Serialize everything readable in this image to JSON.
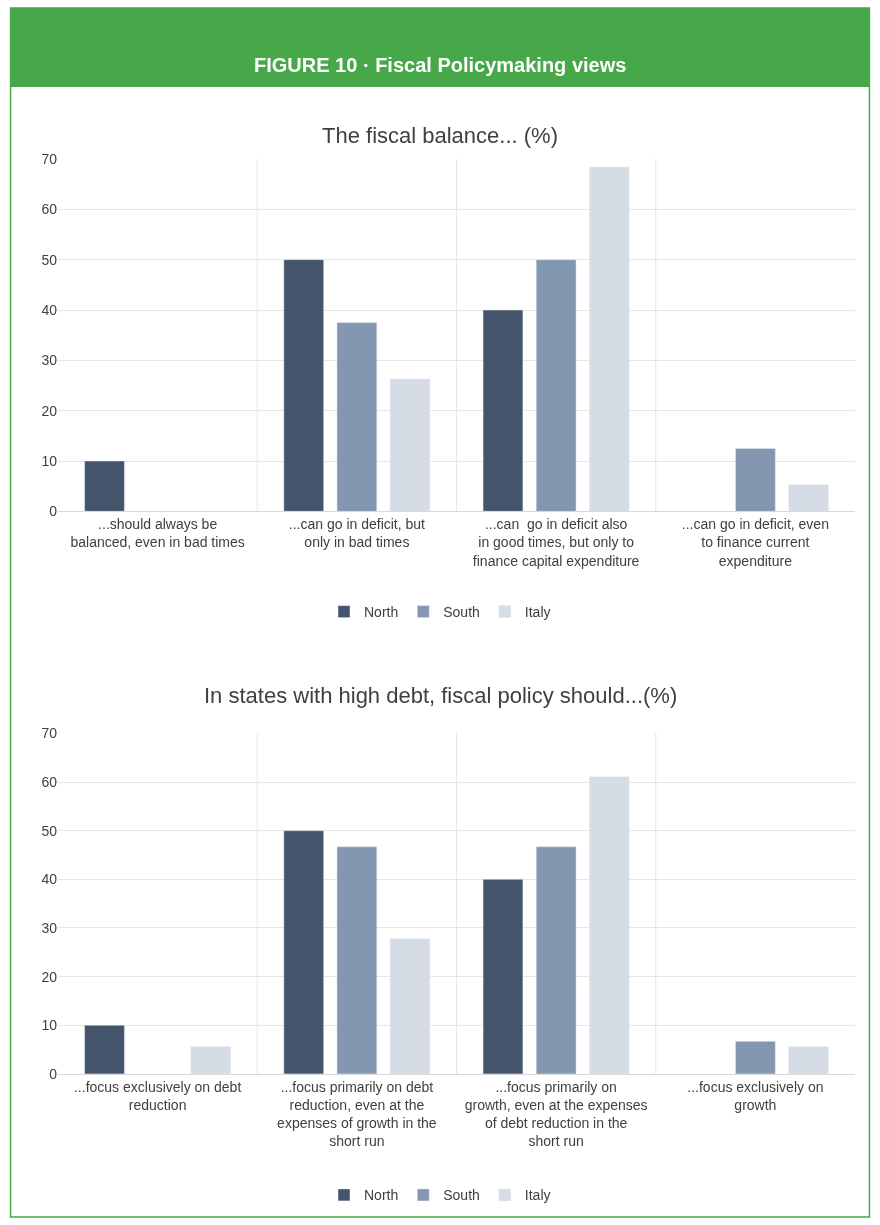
{
  "chart_data": [
    {
      "type": "bar",
      "title": "FIGURE 10 · Fiscal Policymaking views",
      "subtitle": "The fiscal balance... (%)",
      "categories": [
        "...should always be balanced, even in bad times",
        "...can go in deficit, but only in bad times",
        "...can  go in deficit also in good times, but only to finance capital expenditure",
        "...can go in deficit, even to finance current expenditure"
      ],
      "series": [
        {
          "name": "North",
          "color": "#44546a",
          "values": [
            10,
            50,
            40,
            null
          ]
        },
        {
          "name": "South",
          "color": "#8497b0",
          "values": [
            null,
            37.5,
            50,
            12.5
          ]
        },
        {
          "name": "Italy",
          "color": "#d6dce5",
          "values": [
            null,
            26.3,
            68.4,
            5.3
          ]
        }
      ],
      "ylim": [
        0,
        70
      ],
      "yticks": [
        0,
        10,
        20,
        30,
        40,
        50,
        60,
        70
      ],
      "grid": true,
      "legend": "bottom"
    },
    {
      "type": "bar",
      "title": "In states with high debt, fiscal policy should...(%)",
      "categories": [
        "...focus exclusively on debt reduction",
        "...focus primarily on debt reduction, even at the expenses of growth in the short run",
        "...focus primarily on growth, even at the expenses of debt reduction in the short run",
        "...focus exclusively on growth"
      ],
      "series": [
        {
          "name": "North",
          "color": "#44546a",
          "values": [
            10,
            50,
            40,
            null
          ]
        },
        {
          "name": "South",
          "color": "#8497b0",
          "values": [
            null,
            46.7,
            46.7,
            6.7
          ]
        },
        {
          "name": "Italy",
          "color": "#d6dce5",
          "values": [
            5.6,
            27.8,
            61.1,
            5.6
          ]
        }
      ],
      "ylim": [
        0,
        70
      ],
      "yticks": [
        0,
        10,
        20,
        30,
        40,
        50,
        60,
        70
      ],
      "grid": true,
      "legend": "bottom"
    }
  ]
}
